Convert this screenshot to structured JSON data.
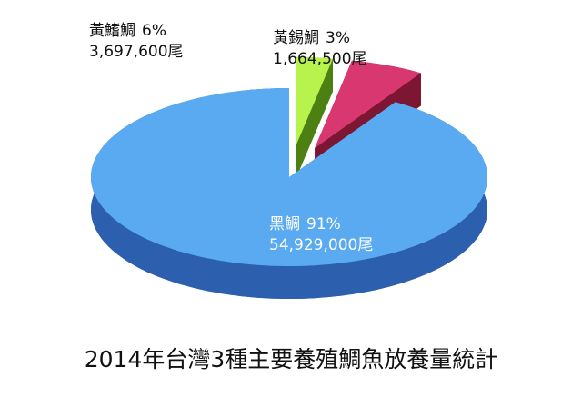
{
  "chart_data": {
    "type": "pie3d",
    "title": "2014年台灣3種主要養殖鯛魚放養量統計",
    "categories": [
      "黑鯛",
      "黃鰭鯛",
      "黃錫鯛"
    ],
    "values": [
      91,
      6,
      3
    ],
    "value_labels": [
      "91%",
      "6%",
      "3%"
    ],
    "counts": [
      54929000,
      3697600,
      1664500
    ],
    "count_labels": [
      "54,929,000尾",
      "3,697,600尾",
      "1,664,500尾"
    ],
    "colors": [
      "#5aaaf2",
      "#d8386f",
      "#b8f24c"
    ],
    "side_colors": [
      "#2c5fae",
      "#7d1632",
      "#4d8012"
    ],
    "exploded": [
      false,
      true,
      true
    ]
  }
}
